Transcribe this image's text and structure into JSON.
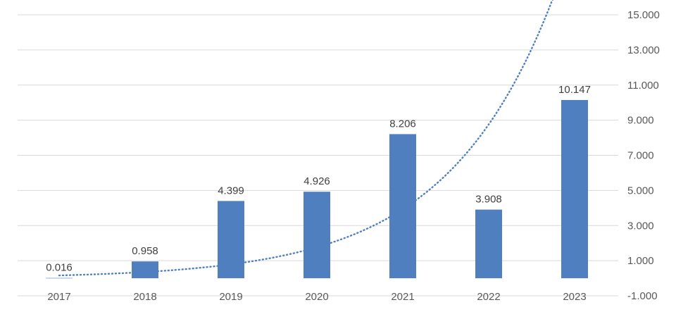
{
  "chart_data": {
    "type": "bar",
    "title": "",
    "xlabel": "",
    "ylabel": "",
    "categories": [
      "2017",
      "2018",
      "2019",
      "2020",
      "2021",
      "2022",
      "2023"
    ],
    "series": [
      {
        "values": [
          0.016,
          0.958,
          4.399,
          4.926,
          8.206,
          3.908,
          10.147
        ],
        "data_labels": [
          "0.016",
          "0.958",
          "4.399",
          "4.926",
          "8.206",
          "3.908",
          "10.147"
        ],
        "color": "#4f7fbf"
      }
    ],
    "trendline": {
      "type": "exponential",
      "style": "dotted",
      "color": "#4f7fbf",
      "values": [
        0.16,
        0.35,
        0.78,
        1.75,
        3.9,
        8.8,
        19.5
      ]
    },
    "y_axis": {
      "position": "right",
      "ylim": [
        -1,
        15
      ],
      "ticks": [
        -1,
        1,
        3,
        5,
        7,
        9,
        11,
        13,
        15
      ],
      "tick_labels": [
        "-1.000",
        "1.000",
        "3.000",
        "5.000",
        "7.000",
        "9.000",
        "11.000",
        "13.000",
        "15.000"
      ]
    },
    "grid": true,
    "legend": "none",
    "colors": {
      "gridline": "#d9d9d9",
      "axis_text": "#595959"
    }
  }
}
